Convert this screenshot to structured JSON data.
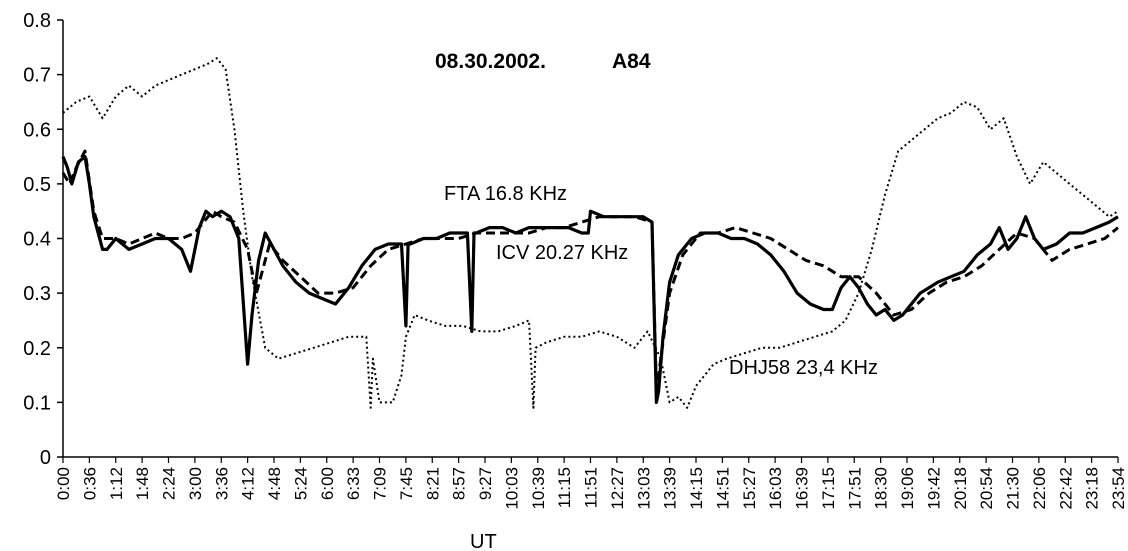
{
  "chart_data": {
    "type": "line",
    "title": "08.30.2002.",
    "title_tag": "A84",
    "xlabel": "UT",
    "ylabel": "",
    "ylim": [
      0,
      0.8
    ],
    "yticks": [
      0,
      0.1,
      0.2,
      0.3,
      0.4,
      0.5,
      0.6,
      0.7,
      0.8
    ],
    "ytick_labels": [
      "0",
      "0.1",
      "0.2",
      "0.3",
      "0.4",
      "0.5",
      "0.6",
      "0.7",
      "0.8"
    ],
    "x_tick_labels": [
      "0:00",
      "0:36",
      "1:12",
      "1:48",
      "2:24",
      "3:00",
      "3:36",
      "4:12",
      "4:48",
      "5:24",
      "6:00",
      "6:33",
      "7:09",
      "7:45",
      "8:21",
      "8:57",
      "9:27",
      "10:03",
      "10:39",
      "11:15",
      "11:51",
      "12:27",
      "13:03",
      "13:39",
      "14:15",
      "14:51",
      "15:27",
      "16:03",
      "16:39",
      "17:15",
      "17:51",
      "18:30",
      "19:06",
      "19:42",
      "20:18",
      "20:54",
      "21:30",
      "22:06",
      "22:42",
      "23:18",
      "23:54"
    ],
    "x_unit": "hours UT",
    "xlim": [
      0,
      24
    ],
    "grid": false,
    "legend": "inline labels",
    "series": [
      {
        "name": "FTA 16.8 KHz",
        "style": "solid-thick",
        "color": "#000000",
        "x": [
          0.0,
          0.1,
          0.2,
          0.35,
          0.5,
          0.6,
          0.7,
          0.9,
          1.0,
          1.2,
          1.5,
          1.8,
          2.1,
          2.4,
          2.7,
          2.9,
          3.1,
          3.25,
          3.4,
          3.6,
          3.8,
          4.0,
          4.2,
          4.3,
          4.45,
          4.6,
          4.8,
          5.0,
          5.3,
          5.6,
          5.9,
          6.2,
          6.5,
          6.8,
          7.1,
          7.4,
          7.7,
          7.8,
          7.85,
          7.9,
          8.2,
          8.5,
          8.8,
          9.2,
          9.3,
          9.35,
          9.4,
          9.7,
          10.0,
          10.3,
          10.6,
          10.9,
          11.2,
          11.5,
          11.8,
          11.95,
          12.0,
          12.3,
          12.6,
          12.9,
          13.2,
          13.4,
          13.5,
          13.55,
          13.65,
          13.8,
          14.0,
          14.3,
          14.6,
          14.9,
          15.2,
          15.5,
          15.8,
          16.1,
          16.4,
          16.7,
          17.0,
          17.3,
          17.5,
          17.7,
          17.9,
          18.1,
          18.3,
          18.5,
          18.7,
          18.9,
          19.1,
          19.3,
          19.5,
          19.7,
          19.9,
          20.2,
          20.5,
          20.8,
          21.1,
          21.3,
          21.5,
          21.7,
          21.9,
          22.1,
          22.3,
          22.6,
          22.9,
          23.2,
          23.5,
          23.8,
          24.0
        ],
        "y": [
          0.55,
          0.53,
          0.5,
          0.54,
          0.55,
          0.5,
          0.44,
          0.38,
          0.38,
          0.4,
          0.38,
          0.39,
          0.4,
          0.4,
          0.38,
          0.34,
          0.42,
          0.45,
          0.44,
          0.45,
          0.44,
          0.4,
          0.17,
          0.26,
          0.36,
          0.41,
          0.38,
          0.35,
          0.32,
          0.3,
          0.29,
          0.28,
          0.31,
          0.35,
          0.38,
          0.39,
          0.39,
          0.24,
          0.39,
          0.39,
          0.4,
          0.4,
          0.41,
          0.41,
          0.23,
          0.41,
          0.41,
          0.42,
          0.42,
          0.41,
          0.42,
          0.42,
          0.42,
          0.42,
          0.41,
          0.41,
          0.45,
          0.44,
          0.44,
          0.44,
          0.44,
          0.43,
          0.1,
          0.12,
          0.22,
          0.32,
          0.37,
          0.4,
          0.41,
          0.41,
          0.4,
          0.4,
          0.39,
          0.37,
          0.34,
          0.3,
          0.28,
          0.27,
          0.27,
          0.31,
          0.33,
          0.31,
          0.28,
          0.26,
          0.27,
          0.25,
          0.26,
          0.28,
          0.3,
          0.31,
          0.32,
          0.33,
          0.34,
          0.37,
          0.39,
          0.42,
          0.38,
          0.4,
          0.44,
          0.4,
          0.38,
          0.39,
          0.41,
          0.41,
          0.42,
          0.43,
          0.44
        ]
      },
      {
        "name": "ICV 20.27 KHz",
        "style": "dashed-thick",
        "color": "#000000",
        "x": [
          0.0,
          0.15,
          0.3,
          0.5,
          0.7,
          0.9,
          1.2,
          1.5,
          1.8,
          2.1,
          2.4,
          2.7,
          3.0,
          3.2,
          3.4,
          3.6,
          3.9,
          4.2,
          4.4,
          4.7,
          5.0,
          5.4,
          5.8,
          6.2,
          6.6,
          7.0,
          7.4,
          7.8,
          8.2,
          8.6,
          9.0,
          9.4,
          9.8,
          10.2,
          10.6,
          11.0,
          11.4,
          11.8,
          12.2,
          12.6,
          13.0,
          13.4,
          13.5,
          13.6,
          13.8,
          14.1,
          14.5,
          14.9,
          15.3,
          15.7,
          16.1,
          16.5,
          16.9,
          17.3,
          17.7,
          18.1,
          18.5,
          18.9,
          19.3,
          19.7,
          20.1,
          20.5,
          20.9,
          21.3,
          21.7,
          22.1,
          22.5,
          22.9,
          23.3,
          23.7,
          24.0
        ],
        "y": [
          0.52,
          0.5,
          0.53,
          0.56,
          0.45,
          0.4,
          0.4,
          0.39,
          0.4,
          0.41,
          0.4,
          0.4,
          0.41,
          0.43,
          0.45,
          0.44,
          0.43,
          0.38,
          0.3,
          0.39,
          0.36,
          0.33,
          0.3,
          0.3,
          0.31,
          0.35,
          0.38,
          0.39,
          0.4,
          0.4,
          0.4,
          0.41,
          0.41,
          0.41,
          0.41,
          0.42,
          0.42,
          0.43,
          0.44,
          0.44,
          0.44,
          0.43,
          0.12,
          0.18,
          0.3,
          0.37,
          0.41,
          0.41,
          0.42,
          0.41,
          0.4,
          0.38,
          0.36,
          0.35,
          0.33,
          0.33,
          0.3,
          0.26,
          0.27,
          0.3,
          0.32,
          0.33,
          0.35,
          0.38,
          0.41,
          0.4,
          0.36,
          0.38,
          0.39,
          0.4,
          0.42
        ]
      },
      {
        "name": "DHJ58 23,4 KHz",
        "style": "dotted",
        "color": "#000000",
        "x": [
          0.0,
          0.3,
          0.6,
          0.9,
          1.2,
          1.5,
          1.8,
          2.1,
          2.4,
          2.7,
          3.0,
          3.3,
          3.5,
          3.7,
          3.9,
          4.1,
          4.3,
          4.6,
          4.9,
          5.3,
          5.7,
          6.1,
          6.5,
          6.9,
          7.0,
          7.05,
          7.2,
          7.5,
          7.7,
          7.8,
          8.0,
          8.3,
          8.7,
          9.1,
          9.5,
          9.9,
          10.3,
          10.6,
          10.7,
          10.75,
          11.0,
          11.4,
          11.8,
          12.2,
          12.6,
          13.0,
          13.3,
          13.6,
          13.8,
          14.0,
          14.2,
          14.4,
          14.6,
          14.8,
          15.1,
          15.5,
          15.9,
          16.3,
          16.7,
          17.1,
          17.5,
          17.8,
          18.1,
          18.4,
          18.7,
          19.0,
          19.3,
          19.6,
          19.9,
          20.2,
          20.5,
          20.8,
          21.1,
          21.4,
          21.7,
          22.0,
          22.3,
          22.6,
          22.9,
          23.2,
          23.5,
          23.8,
          24.0
        ],
        "y": [
          0.63,
          0.65,
          0.66,
          0.62,
          0.66,
          0.68,
          0.66,
          0.68,
          0.69,
          0.7,
          0.71,
          0.72,
          0.73,
          0.71,
          0.6,
          0.45,
          0.33,
          0.2,
          0.18,
          0.19,
          0.2,
          0.21,
          0.22,
          0.22,
          0.09,
          0.18,
          0.1,
          0.1,
          0.15,
          0.22,
          0.26,
          0.25,
          0.24,
          0.24,
          0.23,
          0.23,
          0.24,
          0.25,
          0.09,
          0.2,
          0.21,
          0.22,
          0.22,
          0.23,
          0.22,
          0.2,
          0.23,
          0.18,
          0.1,
          0.11,
          0.09,
          0.13,
          0.15,
          0.17,
          0.18,
          0.19,
          0.2,
          0.2,
          0.21,
          0.22,
          0.23,
          0.25,
          0.3,
          0.38,
          0.48,
          0.56,
          0.58,
          0.6,
          0.62,
          0.63,
          0.65,
          0.64,
          0.6,
          0.62,
          0.55,
          0.5,
          0.54,
          0.52,
          0.5,
          0.48,
          0.46,
          0.44,
          0.45
        ]
      }
    ]
  }
}
